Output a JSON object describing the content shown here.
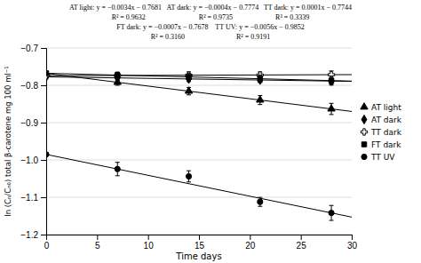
{
  "chart_data": {
    "type": "scatter",
    "title": [
      "AT light: y = −0.0034x − 0.7681   AT dark: y = −0.0004x − 0.7774   TT dark: y = 0.0001x − 0.7744",
      "R² = 0.9632                              R² = 0.9735                        R² = 0.3339",
      "FT dark: y = −0.0007x − 0.7678    TT UV: y = −0.0056x − 0.9852",
      "R² = 0.3160                             R² = 0.9191"
    ],
    "x_label": "Time days",
    "y_label": "ln (Cₙ/Cₙ₀) total β-carotene mg 100 ml⁻¹",
    "xlim": [
      0,
      30
    ],
    "ylim": [
      -1.2,
      -0.7
    ],
    "xticks": [
      0,
      5,
      10,
      15,
      20,
      25,
      30
    ],
    "yticks": [
      {
        "value": -1.2,
        "label": "−1.2"
      },
      {
        "value": -1.1,
        "label": "−1.1"
      },
      {
        "value": -1.0,
        "label": "−1.0"
      },
      {
        "value": -0.9,
        "label": "−0.9"
      },
      {
        "value": -0.8,
        "label": "−0.8"
      },
      {
        "value": -0.7,
        "label": "−0.7"
      }
    ],
    "grid": true,
    "legend": "right",
    "series": [
      {
        "name": "AT light",
        "marker": "triangle",
        "color": "black",
        "x": [
          0,
          7,
          14,
          21,
          28
        ],
        "values": [
          -0.7681,
          -0.7919,
          -0.8157,
          -0.8395,
          -0.8633
        ],
        "yerr": [
          0.005,
          0.008,
          0.01,
          0.012,
          0.015
        ],
        "trend": {
          "x": [
            0,
            30
          ],
          "values": [
            -0.7681,
            -0.8701
          ]
        }
      },
      {
        "name": "AT dark",
        "marker": "diamond",
        "color": "black",
        "x": [
          0,
          7,
          14,
          21,
          28
        ],
        "values": [
          -0.7774,
          -0.7802,
          -0.783,
          -0.7858,
          -0.7886
        ],
        "yerr": [
          0.004,
          0.006,
          0.007,
          0.006,
          0.008
        ],
        "trend": {
          "x": [
            0,
            30
          ],
          "values": [
            -0.7774,
            -0.7894
          ]
        }
      },
      {
        "name": "TT dark",
        "marker": "plus",
        "color": "black",
        "x": [
          0,
          7,
          14,
          21,
          28
        ],
        "values": [
          -0.7744,
          -0.7737,
          -0.773,
          -0.7723,
          -0.7716
        ],
        "yerr": [
          0.004,
          0.007,
          0.009,
          0.008,
          0.01
        ],
        "trend": {
          "x": [
            0,
            30
          ],
          "values": [
            -0.7744,
            -0.7714
          ]
        }
      },
      {
        "name": "FT dark",
        "marker": "square",
        "color": "black",
        "x": [
          0,
          7,
          14,
          21,
          28
        ],
        "values": [
          -0.7678,
          -0.7727,
          -0.7776,
          -0.7825,
          -0.7874
        ],
        "yerr": [
          0.005,
          0.008,
          0.009,
          0.01,
          0.012
        ],
        "trend": {
          "x": [
            0,
            30
          ],
          "values": [
            -0.7678,
            -0.7888
          ]
        }
      },
      {
        "name": "TT UV",
        "marker": "circle",
        "color": "black",
        "x": [
          0,
          7,
          14,
          21,
          28
        ],
        "values": [
          -0.9852,
          -1.0244,
          -1.044,
          -1.1124,
          -1.142
        ],
        "yerr": [
          0.0,
          0.018,
          0.015,
          0.012,
          0.02
        ],
        "trend": {
          "x": [
            0,
            30
          ],
          "values": [
            -0.9852,
            -1.1532
          ]
        }
      }
    ]
  }
}
